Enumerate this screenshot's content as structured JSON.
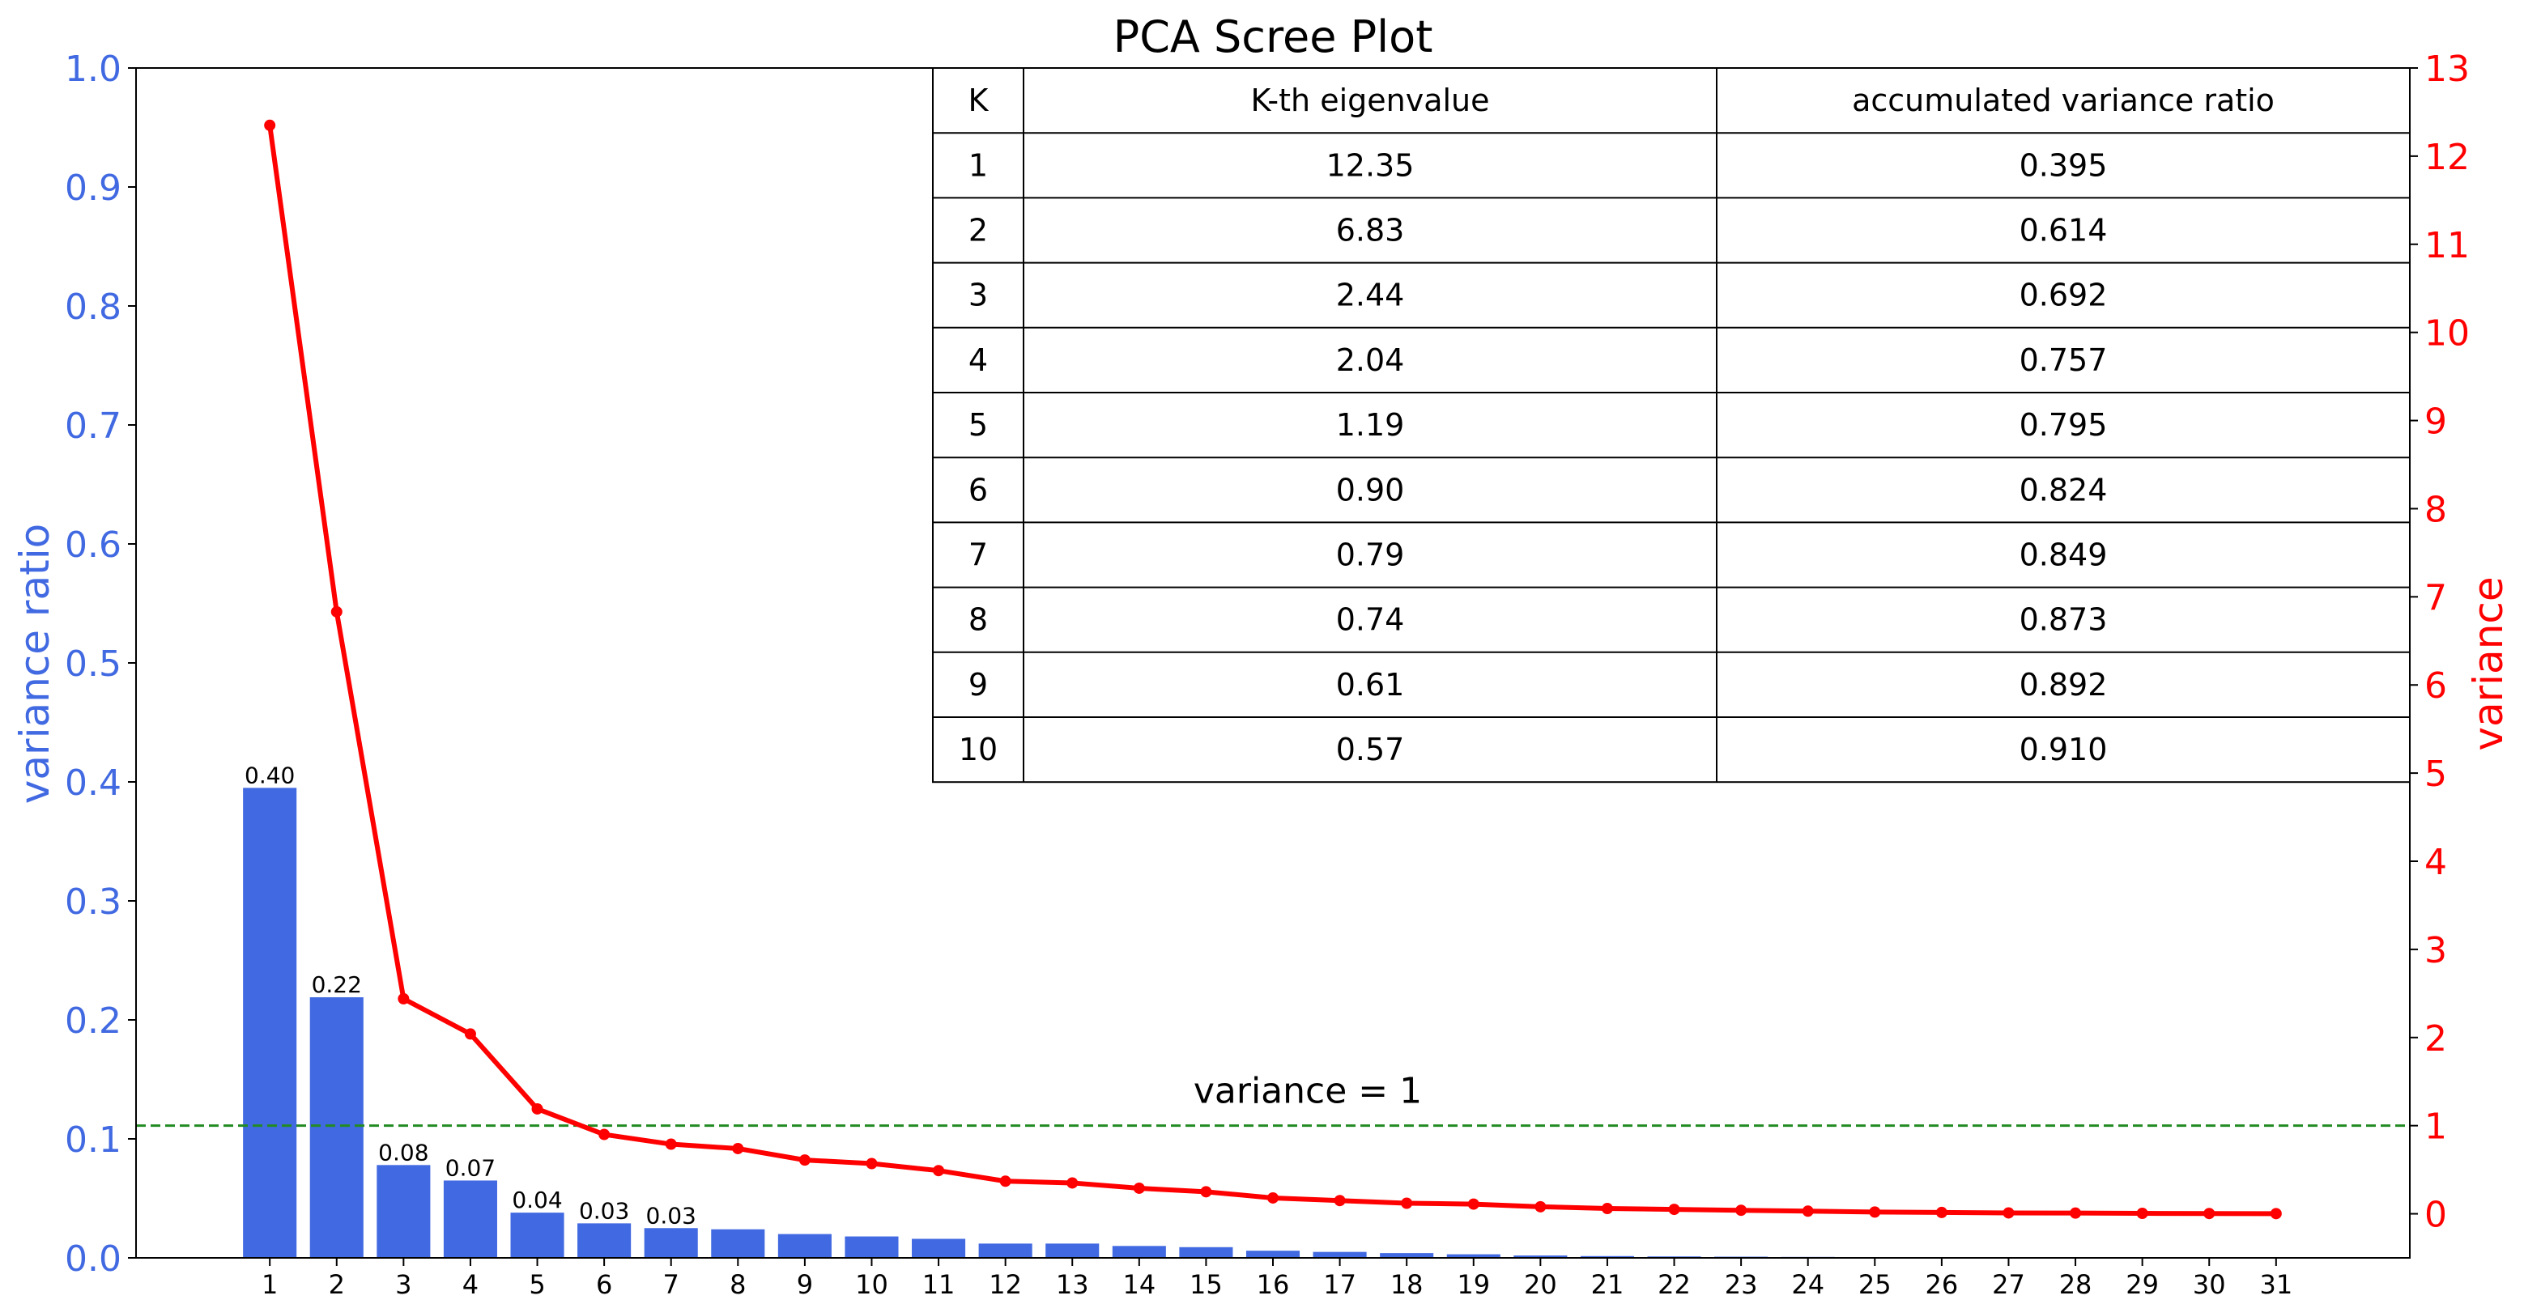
{
  "chart_data": {
    "type": "bar",
    "title": "PCA Scree Plot",
    "xlabel": "",
    "ylabel_left": "variance ratio",
    "ylabel_right": "variance",
    "ylim_left": [
      0,
      1.0
    ],
    "ylim_right": [
      -0.5,
      13
    ],
    "left_ticks": [
      "0.0",
      "0.1",
      "0.2",
      "0.3",
      "0.4",
      "0.5",
      "0.6",
      "0.7",
      "0.8",
      "0.9",
      "1.0"
    ],
    "right_ticks": [
      "0",
      "1",
      "2",
      "3",
      "4",
      "5",
      "6",
      "7",
      "8",
      "9",
      "10",
      "11",
      "12",
      "13"
    ],
    "categories": [
      "1",
      "2",
      "3",
      "4",
      "5",
      "6",
      "7",
      "8",
      "9",
      "10",
      "11",
      "12",
      "13",
      "14",
      "15",
      "16",
      "17",
      "18",
      "19",
      "20",
      "21",
      "22",
      "23",
      "24",
      "25",
      "26",
      "27",
      "28",
      "29",
      "30",
      "31"
    ],
    "series": [
      {
        "type": "bar",
        "axis": "left",
        "color": "#4169E1",
        "values": [
          0.395,
          0.219,
          0.078,
          0.065,
          0.038,
          0.029,
          0.025,
          0.024,
          0.02,
          0.018,
          0.016,
          0.012,
          0.012,
          0.01,
          0.009,
          0.006,
          0.005,
          0.004,
          0.003,
          0.002,
          0.0015,
          0.0012,
          0.001,
          0.0008,
          0.0006,
          0.0004,
          0.0003,
          0.0002,
          0.0001,
          0.0001,
          0.0001
        ]
      },
      {
        "type": "line",
        "axis": "right",
        "color": "#FF0000",
        "values": [
          12.35,
          6.83,
          2.44,
          2.04,
          1.19,
          0.9,
          0.79,
          0.74,
          0.61,
          0.57,
          0.49,
          0.37,
          0.35,
          0.29,
          0.25,
          0.18,
          0.15,
          0.12,
          0.11,
          0.08,
          0.06,
          0.05,
          0.04,
          0.03,
          0.02,
          0.015,
          0.01,
          0.008,
          0.005,
          0.003,
          0.002
        ]
      }
    ],
    "bar_labels": [
      "0.40",
      "0.22",
      "0.08",
      "0.07",
      "0.04",
      "0.03",
      "0.03"
    ],
    "reference_line": {
      "axis": "right",
      "value": 1,
      "label": "variance = 1",
      "color": "#228B22",
      "style": "dashed"
    },
    "table": {
      "headers": [
        "K",
        "K-th eigenvalue",
        "accumulated variance ratio"
      ],
      "rows": [
        [
          "1",
          "12.35",
          "0.395"
        ],
        [
          "2",
          "6.83",
          "0.614"
        ],
        [
          "3",
          "2.44",
          "0.692"
        ],
        [
          "4",
          "2.04",
          "0.757"
        ],
        [
          "5",
          "1.19",
          "0.795"
        ],
        [
          "6",
          "0.90",
          "0.824"
        ],
        [
          "7",
          "0.79",
          "0.849"
        ],
        [
          "8",
          "0.74",
          "0.873"
        ],
        [
          "9",
          "0.61",
          "0.892"
        ],
        [
          "10",
          "0.57",
          "0.910"
        ]
      ]
    },
    "colors": {
      "left_axis": "#4169E1",
      "right_axis": "#FF0000",
      "title": "#000000"
    }
  }
}
